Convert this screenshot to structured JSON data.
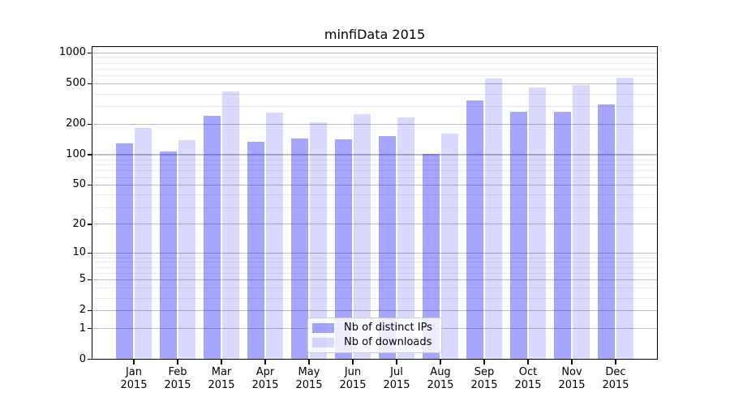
{
  "chart_data": {
    "type": "bar",
    "title": "minfiData 2015",
    "yscale": "log10(value+1)",
    "grid": true,
    "legend_position": "lower center",
    "categories": [
      "Jan 2015",
      "Feb 2015",
      "Mar 2015",
      "Apr 2015",
      "May 2015",
      "Jun 2015",
      "Jul 2015",
      "Aug 2015",
      "Sep 2015",
      "Oct 2015",
      "Nov 2015",
      "Dec 2015"
    ],
    "series": [
      {
        "name": "Nb of distinct IPs",
        "color": "rgba(0,0,255,0.35)",
        "values": [
          130,
          108,
          240,
          135,
          145,
          143,
          152,
          102,
          343,
          265,
          267,
          313
        ]
      },
      {
        "name": "Nb of downloads",
        "color": "rgba(0,0,255,0.15)",
        "values": [
          185,
          140,
          420,
          260,
          210,
          250,
          235,
          160,
          560,
          460,
          485,
          570
        ]
      }
    ],
    "y_major_ticks": [
      1000,
      500,
      200,
      100,
      50,
      20,
      10,
      5,
      2,
      1,
      0
    ],
    "y_minor_ticks": [
      900,
      800,
      700,
      600,
      400,
      300,
      90,
      80,
      70,
      60,
      40,
      30,
      9,
      8,
      7,
      6,
      4,
      3
    ],
    "colors": {
      "major_grid": "#bdbdbd",
      "minor_grid": "#eaeaea",
      "axis": "#000000",
      "background": "#ffffff"
    }
  }
}
